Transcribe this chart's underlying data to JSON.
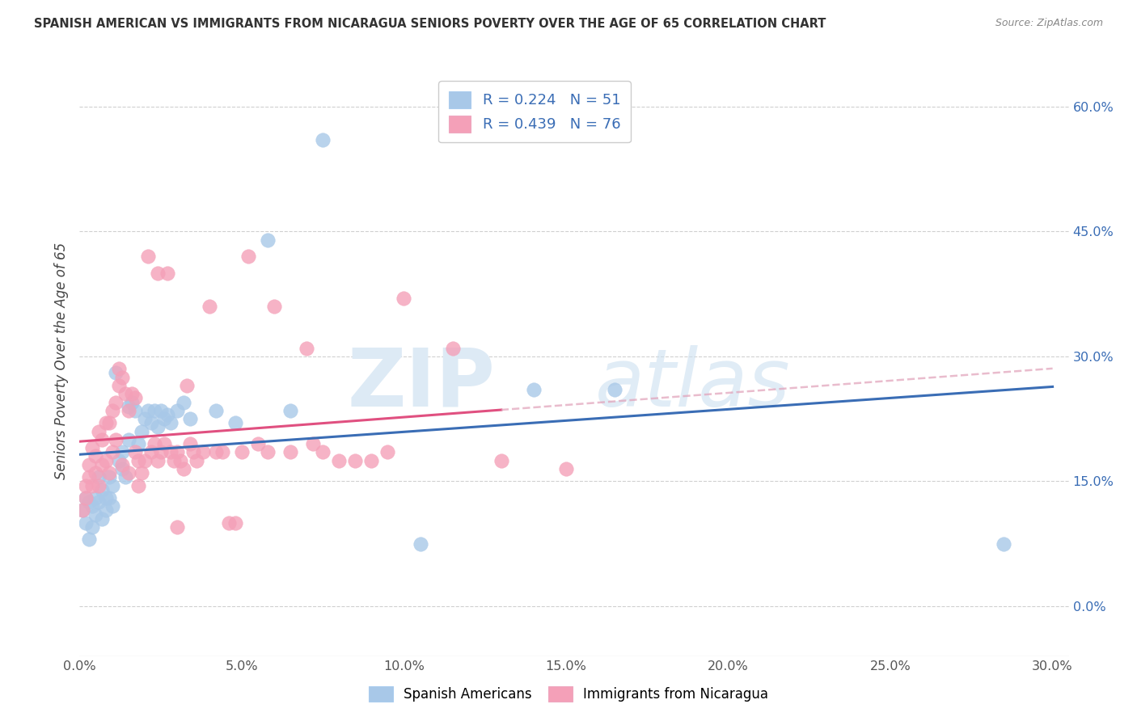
{
  "title": "SPANISH AMERICAN VS IMMIGRANTS FROM NICARAGUA SENIORS POVERTY OVER THE AGE OF 65 CORRELATION CHART",
  "source": "Source: ZipAtlas.com",
  "ylabel_label": "Seniors Poverty Over the Age of 65",
  "legend_labels": [
    "Spanish Americans",
    "Immigrants from Nicaragua"
  ],
  "R_blue": 0.224,
  "N_blue": 51,
  "R_pink": 0.439,
  "N_pink": 76,
  "blue_color": "#a8c8e8",
  "pink_color": "#f4a0b8",
  "blue_line_color": "#3a6db5",
  "pink_line_color": "#e05080",
  "dashed_line_color": "#e0a0b8",
  "xlim": [
    0.0,
    0.305
  ],
  "ylim": [
    -0.06,
    0.65
  ],
  "x_tick_vals": [
    0.0,
    0.05,
    0.1,
    0.15,
    0.2,
    0.25,
    0.3
  ],
  "y_tick_vals": [
    0.0,
    0.15,
    0.3,
    0.45,
    0.6
  ],
  "blue_scatter": [
    [
      0.001,
      0.115
    ],
    [
      0.002,
      0.1
    ],
    [
      0.002,
      0.13
    ],
    [
      0.003,
      0.08
    ],
    [
      0.003,
      0.125
    ],
    [
      0.004,
      0.12
    ],
    [
      0.004,
      0.095
    ],
    [
      0.005,
      0.11
    ],
    [
      0.005,
      0.13
    ],
    [
      0.006,
      0.155
    ],
    [
      0.006,
      0.125
    ],
    [
      0.007,
      0.105
    ],
    [
      0.007,
      0.14
    ],
    [
      0.008,
      0.13
    ],
    [
      0.008,
      0.115
    ],
    [
      0.009,
      0.155
    ],
    [
      0.009,
      0.13
    ],
    [
      0.01,
      0.145
    ],
    [
      0.01,
      0.12
    ],
    [
      0.011,
      0.28
    ],
    [
      0.012,
      0.175
    ],
    [
      0.013,
      0.185
    ],
    [
      0.013,
      0.165
    ],
    [
      0.014,
      0.155
    ],
    [
      0.015,
      0.2
    ],
    [
      0.015,
      0.24
    ],
    [
      0.016,
      0.245
    ],
    [
      0.017,
      0.235
    ],
    [
      0.018,
      0.195
    ],
    [
      0.019,
      0.21
    ],
    [
      0.02,
      0.225
    ],
    [
      0.021,
      0.235
    ],
    [
      0.022,
      0.22
    ],
    [
      0.023,
      0.235
    ],
    [
      0.024,
      0.215
    ],
    [
      0.025,
      0.235
    ],
    [
      0.026,
      0.225
    ],
    [
      0.027,
      0.23
    ],
    [
      0.028,
      0.22
    ],
    [
      0.03,
      0.235
    ],
    [
      0.032,
      0.245
    ],
    [
      0.034,
      0.225
    ],
    [
      0.042,
      0.235
    ],
    [
      0.048,
      0.22
    ],
    [
      0.058,
      0.44
    ],
    [
      0.065,
      0.235
    ],
    [
      0.075,
      0.56
    ],
    [
      0.105,
      0.075
    ],
    [
      0.14,
      0.26
    ],
    [
      0.165,
      0.26
    ],
    [
      0.285,
      0.075
    ]
  ],
  "pink_scatter": [
    [
      0.001,
      0.115
    ],
    [
      0.002,
      0.13
    ],
    [
      0.002,
      0.145
    ],
    [
      0.003,
      0.155
    ],
    [
      0.003,
      0.17
    ],
    [
      0.004,
      0.145
    ],
    [
      0.004,
      0.19
    ],
    [
      0.005,
      0.16
    ],
    [
      0.005,
      0.18
    ],
    [
      0.006,
      0.145
    ],
    [
      0.006,
      0.21
    ],
    [
      0.007,
      0.17
    ],
    [
      0.007,
      0.2
    ],
    [
      0.008,
      0.175
    ],
    [
      0.008,
      0.22
    ],
    [
      0.009,
      0.16
    ],
    [
      0.009,
      0.22
    ],
    [
      0.01,
      0.185
    ],
    [
      0.01,
      0.235
    ],
    [
      0.011,
      0.2
    ],
    [
      0.011,
      0.245
    ],
    [
      0.012,
      0.265
    ],
    [
      0.012,
      0.285
    ],
    [
      0.013,
      0.17
    ],
    [
      0.013,
      0.275
    ],
    [
      0.014,
      0.255
    ],
    [
      0.015,
      0.16
    ],
    [
      0.015,
      0.235
    ],
    [
      0.016,
      0.255
    ],
    [
      0.017,
      0.25
    ],
    [
      0.017,
      0.185
    ],
    [
      0.018,
      0.175
    ],
    [
      0.018,
      0.145
    ],
    [
      0.019,
      0.16
    ],
    [
      0.02,
      0.175
    ],
    [
      0.021,
      0.42
    ],
    [
      0.022,
      0.185
    ],
    [
      0.023,
      0.195
    ],
    [
      0.024,
      0.4
    ],
    [
      0.024,
      0.175
    ],
    [
      0.025,
      0.185
    ],
    [
      0.026,
      0.195
    ],
    [
      0.027,
      0.4
    ],
    [
      0.028,
      0.185
    ],
    [
      0.029,
      0.175
    ],
    [
      0.03,
      0.185
    ],
    [
      0.03,
      0.095
    ],
    [
      0.031,
      0.175
    ],
    [
      0.032,
      0.165
    ],
    [
      0.033,
      0.265
    ],
    [
      0.034,
      0.195
    ],
    [
      0.035,
      0.185
    ],
    [
      0.036,
      0.175
    ],
    [
      0.038,
      0.185
    ],
    [
      0.04,
      0.36
    ],
    [
      0.042,
      0.185
    ],
    [
      0.044,
      0.185
    ],
    [
      0.046,
      0.1
    ],
    [
      0.048,
      0.1
    ],
    [
      0.05,
      0.185
    ],
    [
      0.052,
      0.42
    ],
    [
      0.055,
      0.195
    ],
    [
      0.058,
      0.185
    ],
    [
      0.06,
      0.36
    ],
    [
      0.065,
      0.185
    ],
    [
      0.07,
      0.31
    ],
    [
      0.072,
      0.195
    ],
    [
      0.075,
      0.185
    ],
    [
      0.08,
      0.175
    ],
    [
      0.085,
      0.175
    ],
    [
      0.09,
      0.175
    ],
    [
      0.095,
      0.185
    ],
    [
      0.1,
      0.37
    ],
    [
      0.115,
      0.31
    ],
    [
      0.13,
      0.175
    ],
    [
      0.15,
      0.165
    ]
  ]
}
